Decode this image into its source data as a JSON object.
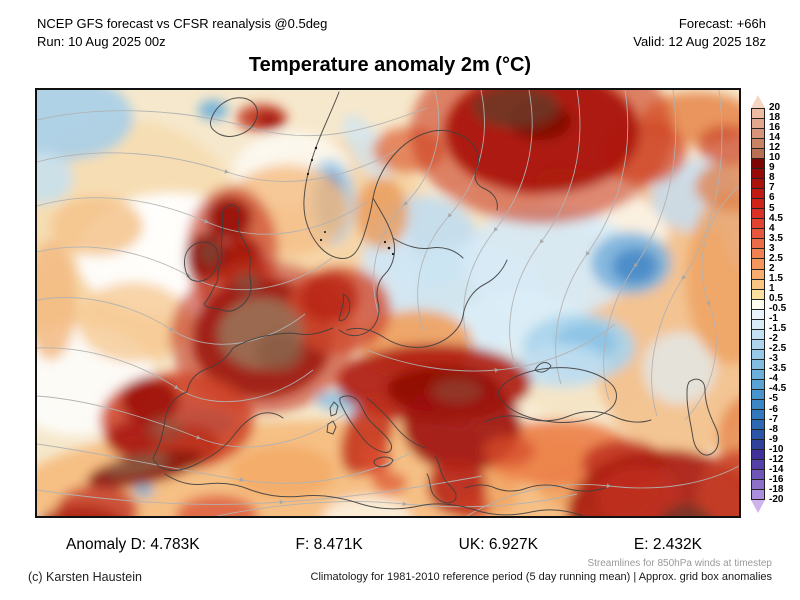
{
  "header": {
    "left_line1": "NCEP GFS forecast vs CFSR reanalysis @0.5deg",
    "left_line2": "Run: 10 Aug 2025 00z",
    "right_line1": "Forecast: +66h",
    "right_line2": "Valid: 12 Aug 2025 18z"
  },
  "title": "Temperature anomaly 2m (°C)",
  "anomaly_bar": {
    "items": [
      {
        "label": "Anomaly D: 4.783K"
      },
      {
        "label": "F: 8.471K"
      },
      {
        "label": "UK: 6.927K"
      },
      {
        "label": "E: 2.432K"
      }
    ]
  },
  "footer": {
    "copyright": "(c) Karsten Haustein",
    "note1": "Streamlines for 850hPa winds at timestep",
    "note2": "Climatology for 1981-2010 reference period (5 day running mean) | Approx. grid box anomalies"
  },
  "colorbar": {
    "top_triangle": "#f5d6c2",
    "bottom_triangle": "#cfb3ec",
    "labels": [
      "20",
      "18",
      "16",
      "14",
      "12",
      "10",
      "9",
      "8",
      "7",
      "6",
      "5",
      "4.5",
      "4",
      "3.5",
      "3",
      "2.5",
      "2",
      "1.5",
      "1",
      "0.5",
      "-0.5",
      "-1",
      "-1.5",
      "-2",
      "-2.5",
      "-3",
      "-3.5",
      "-4",
      "-4.5",
      "-5",
      "-6",
      "-7",
      "-8",
      "-9",
      "-10",
      "-12",
      "-14",
      "-16",
      "-18",
      "-20"
    ],
    "cells": [
      "#edbaa2",
      "#e2a78c",
      "#d69478",
      "#c98264",
      "#b96f53",
      "#7d0503",
      "#960b06",
      "#aa130c",
      "#bf1b12",
      "#cf2418",
      "#d93125",
      "#e04331",
      "#e6573d",
      "#ec6c47",
      "#f08152",
      "#f4975e",
      "#f8ad6e",
      "#fbc683",
      "#fde09d",
      "#fffdf0",
      "#eaf4fa",
      "#d9ecf7",
      "#c4e1f2",
      "#aed5ed",
      "#98c9e7",
      "#82bce1",
      "#6cafda",
      "#58a2d4",
      "#4895cd",
      "#3b87c5",
      "#3278bc",
      "#2d68b2",
      "#2c55a7",
      "#30419b",
      "#3f3199",
      "#5440a6",
      "#6f55b8",
      "#8c70ca",
      "#ab8fdc"
    ]
  },
  "chart_data": {
    "type": "heatmap",
    "title": "Temperature anomaly 2m (°C)",
    "model": "NCEP GFS forecast vs CFSR reanalysis @0.5deg",
    "run": "10 Aug 2025 00z",
    "forecast": "+66h",
    "valid": "12 Aug 2025 18z",
    "region": "Europe / North Atlantic",
    "units": "°C",
    "colorbar_levels": [
      20,
      18,
      16,
      14,
      12,
      10,
      9,
      8,
      7,
      6,
      5,
      4.5,
      4,
      3.5,
      3,
      2.5,
      2,
      1.5,
      1,
      0.5,
      -0.5,
      -1,
      -1.5,
      -2,
      -2.5,
      -3,
      -3.5,
      -4,
      -4.5,
      -5,
      -6,
      -7,
      -8,
      -9,
      -10,
      -12,
      -14,
      -16,
      -18,
      -20
    ],
    "regional_mean_anomalies_K": {
      "D": 4.783,
      "F": 8.471,
      "UK": 6.927,
      "E": 2.432
    },
    "overlay": "850hPa wind streamlines",
    "notable_features": [
      "Strong warm anomaly (+8 to +12) over UK, Ireland and France (brown core over France)",
      "Extreme warm anomaly (+9 to +14) over Barents Sea / Novaya Zemlya",
      "Warm anomaly over Iberia, Atlas Mountains, Balkans, Carpathians and Middle East",
      "Cool anomaly (-2 to -6) over Finland, Baltic states, western Russia and Urals",
      "Cool spot (-4 to -6) over southern Norway mountains",
      "Cool anomaly north of the Black Sea; small cool patches in eastern Spain and Morocco",
      "Near-neutral (white) band over the central North Atlantic"
    ]
  }
}
